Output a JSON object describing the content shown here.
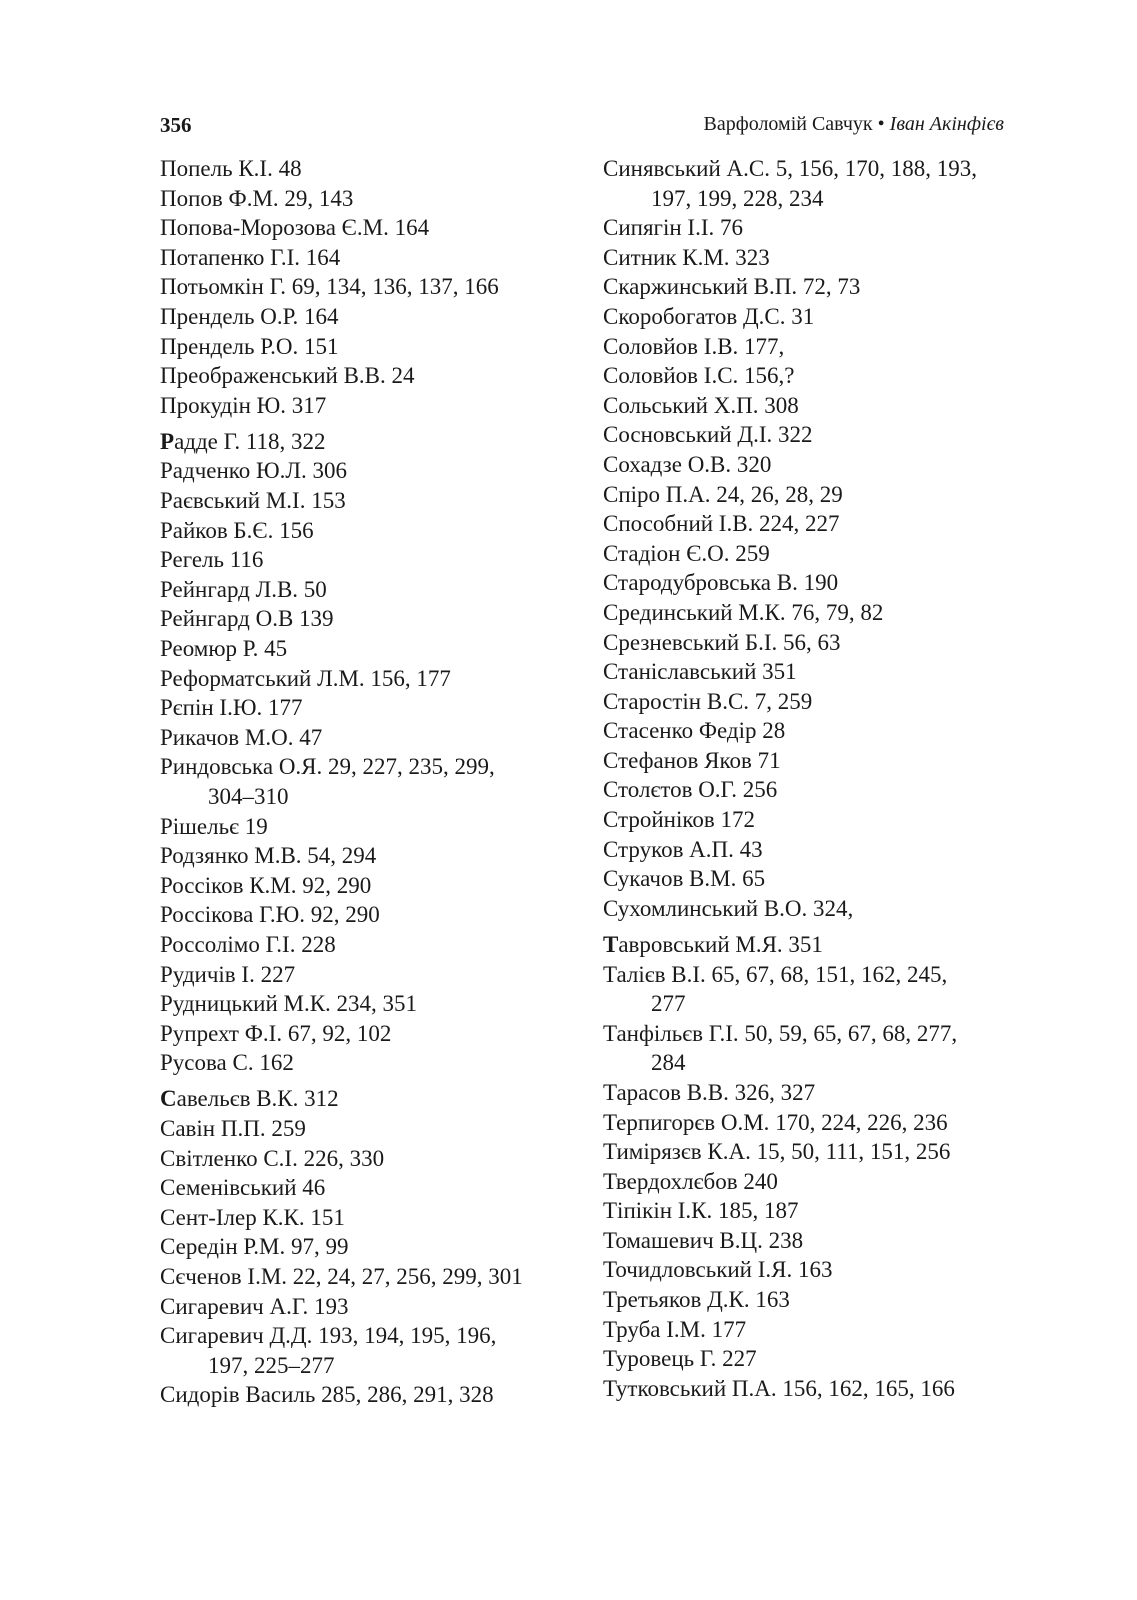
{
  "header": {
    "page_number": "356",
    "author": "Варфоломій Савчук",
    "separator": "•",
    "subject": "Іван Акінфієв"
  },
  "left_column": [
    {
      "entries": [
        {
          "text": "Попель К.І. 48"
        },
        {
          "text": "Попов Ф.М. 29, 143"
        },
        {
          "text": "Попова-Морозова Є.М. 164"
        },
        {
          "text": "Потапенко Г.І. 164"
        },
        {
          "text": "Потьомкін Г. 69, 134, 136, 137, 166"
        },
        {
          "text": "Прендель О.Р. 164"
        },
        {
          "text": "Прендель Р.О. 151"
        },
        {
          "text": "Преображенський В.В. 24"
        },
        {
          "text": "Прокудін Ю. 317"
        }
      ]
    },
    {
      "bold_initial": true,
      "entries": [
        {
          "text": "Радде Г. 118, 322"
        },
        {
          "text": "Радченко Ю.Л.  306"
        },
        {
          "text": "Раєвський М.І. 153"
        },
        {
          "text": "Райков Б.Є. 156"
        },
        {
          "text": "Регель 116"
        },
        {
          "text": "Рейнгард Л.В. 50"
        },
        {
          "text": "Рейнгард О.В 139"
        },
        {
          "text": "Реомюр Р. 45"
        },
        {
          "text": "Реформатський Л.М. 156, 177"
        },
        {
          "text": "Рєпін І.Ю. 177"
        },
        {
          "text": "Рикачов М.О. 47"
        },
        {
          "text": "Риндовська  О.Я.  29,  227,  235,  299,",
          "cont": "304–310"
        },
        {
          "text": "Рішельє 19"
        },
        {
          "text": "Родзянко М.В. 54, 294"
        },
        {
          "text": "Россіков К.М. 92, 290"
        },
        {
          "text": "Россікова Г.Ю. 92, 290"
        },
        {
          "text": "Россолімо Г.І. 228"
        },
        {
          "text": "Рудичів І. 227"
        },
        {
          "text": "Рудницький М.К. 234, 351"
        },
        {
          "text": "Рупрехт Ф.І. 67, 92, 102"
        },
        {
          "text": "Русова С. 162"
        }
      ]
    },
    {
      "bold_initial": true,
      "entries": [
        {
          "text": "Савельєв В.К. 312"
        },
        {
          "text": "Савін П.П. 259"
        },
        {
          "text": "Світленко С.І. 226, 330"
        },
        {
          "text": "Семенівський 46"
        },
        {
          "text": "Сент-Ілер К.К. 151"
        },
        {
          "text": "Середін Р.М. 97, 99"
        },
        {
          "text": "Сєченов І.М. 22, 24, 27, 256, 299, 301"
        },
        {
          "text": "Сигаревич А.Г. 193"
        },
        {
          "text": "Сигаревич  Д.Д.  193,  194,  195,  196,",
          "cont": "197, 225–277"
        },
        {
          "text": "Сидорів Василь 285, 286, 291, 328"
        }
      ]
    }
  ],
  "right_column": [
    {
      "entries": [
        {
          "text": "Синявський А.С. 5, 156, 170, 188, 193,",
          "cont": "197, 199, 228, 234"
        },
        {
          "text": "Сипягін І.І. 76"
        },
        {
          "text": "Ситник К.М. 323"
        },
        {
          "text": "Скаржинський В.П. 72, 73"
        },
        {
          "text": "Скоробогатов Д.С.  31"
        },
        {
          "text": "Соловйов І.В. 177,"
        },
        {
          "text": "Соловйов І.С. 156,?"
        },
        {
          "text": "Сольський Х.П. 308"
        },
        {
          "text": "Сосновський Д.І.  322"
        },
        {
          "text": "Сохадзе О.В. 320"
        },
        {
          "text": "Спіро П.А. 24, 26, 28, 29"
        },
        {
          "text": "Способний І.В. 224, 227"
        },
        {
          "text": "Стадіон Є.О. 259"
        },
        {
          "text": "Стародубровська В. 190"
        },
        {
          "text": "Срединський М.К. 76, 79, 82"
        },
        {
          "text": "Срезневський Б.І. 56, 63"
        },
        {
          "text": "Станіславський 351"
        },
        {
          "text": "Старостін В.С. 7, 259"
        },
        {
          "text": "Стасенко Федір 28"
        },
        {
          "text": "Стефанов Яков 71"
        },
        {
          "text": "Столєтов О.Г. 256"
        },
        {
          "text": "Стройніков 172"
        },
        {
          "text": "Струков А.П. 43"
        },
        {
          "text": "Сукачов В.М. 65"
        },
        {
          "text": "Сухомлинський В.О. 324,"
        }
      ]
    },
    {
      "bold_initial": true,
      "entries": [
        {
          "text": "Тавровський М.Я. 351"
        },
        {
          "text": "Талієв В.І. 65, 67, 68, 151, 162, 245,",
          "cont": "277"
        },
        {
          "text": "Танфільєв Г.І. 50, 59, 65, 67, 68, 277,",
          "cont": "284"
        },
        {
          "text": "Тарасов В.В. 326, 327"
        },
        {
          "text": "Терпигорєв О.М. 170, 224, 226, 236"
        },
        {
          "text": "Тимірязєв К.А. 15, 50, 111, 151, 256"
        },
        {
          "text": "Твердохлєбов 240"
        },
        {
          "text": "Тіпікін І.К. 185, 187"
        },
        {
          "text": "Томашевич В.Ц. 238"
        },
        {
          "text": "Точидловський І.Я. 163"
        },
        {
          "text": "Третьяков Д.К. 163"
        },
        {
          "text": "Труба І.М. 177"
        },
        {
          "text": "Туровець Г. 227"
        },
        {
          "text": "Тутковський П.А. 156, 162, 165, 166"
        }
      ]
    }
  ]
}
